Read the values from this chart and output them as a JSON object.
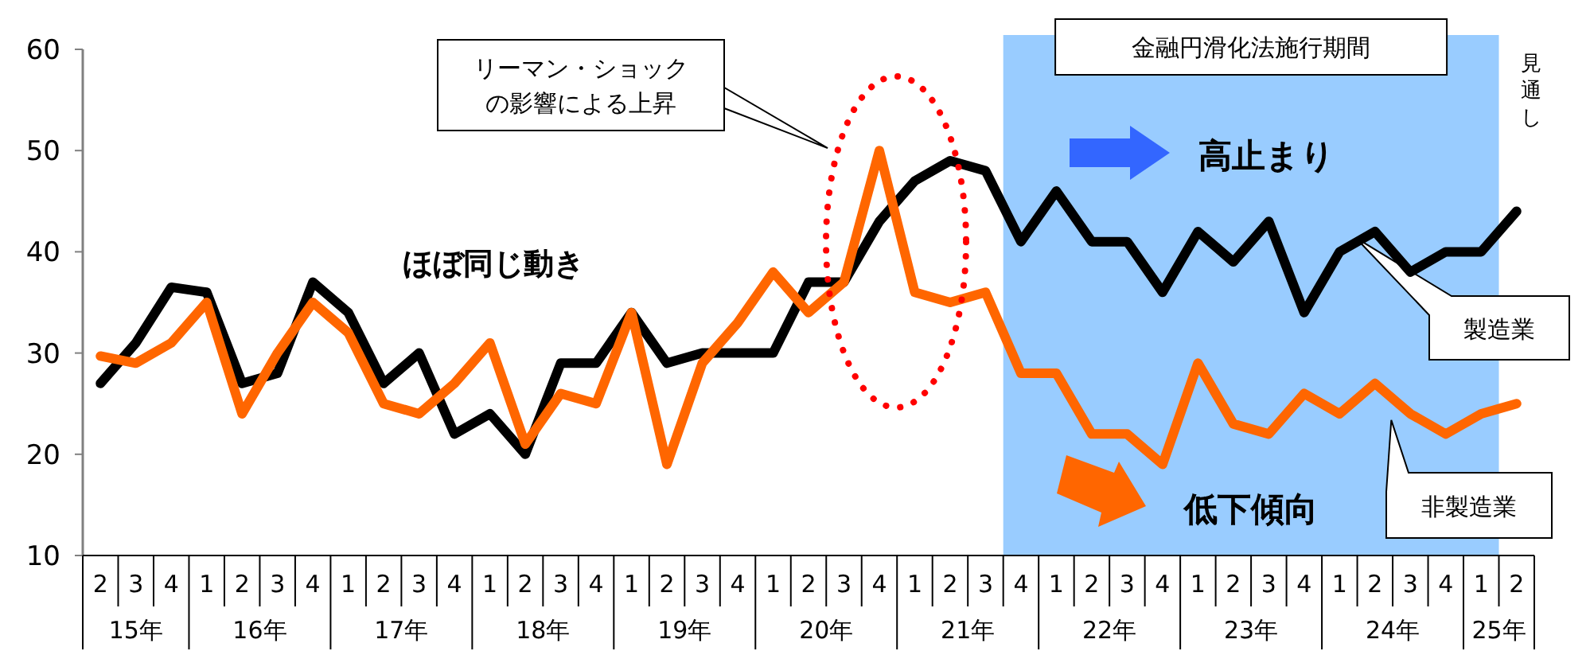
{
  "chart_data": {
    "type": "line",
    "categories": [
      "2",
      "3",
      "4",
      "1",
      "2",
      "3",
      "4",
      "1",
      "2",
      "3",
      "4",
      "1",
      "2",
      "3",
      "4",
      "1",
      "2",
      "3",
      "4",
      "1",
      "2",
      "3",
      "4",
      "1",
      "2",
      "3",
      "4",
      "1",
      "2",
      "3",
      "4",
      "1",
      "2",
      "3",
      "4",
      "1",
      "2",
      "3",
      "4",
      "1",
      "2"
    ],
    "series": [
      {
        "name": "製造業",
        "color": "#000000",
        "values": [
          27,
          31,
          36.5,
          36,
          27,
          28,
          37,
          34,
          27,
          30,
          22,
          24,
          20,
          29,
          29,
          34,
          29,
          30,
          30,
          30,
          37,
          37,
          43,
          47,
          49,
          48,
          41,
          46,
          41,
          41,
          36,
          42,
          39,
          43,
          34,
          40,
          42,
          38,
          40,
          40,
          44
        ]
      },
      {
        "name": "非製造業",
        "color": "#ff6600",
        "values": [
          29.7,
          29,
          31,
          35,
          24,
          30,
          35,
          32,
          25,
          24,
          27,
          31,
          21,
          26,
          25,
          34,
          19,
          29,
          33,
          38,
          34,
          37,
          50,
          36,
          35,
          36,
          28,
          28,
          22,
          22,
          19,
          29,
          23,
          22,
          26,
          24,
          27,
          24,
          22,
          24,
          25
        ]
      }
    ],
    "ylim": [
      10,
      60
    ],
    "yticks": [
      10,
      20,
      30,
      40,
      50,
      60
    ],
    "grid": false,
    "marker": "none",
    "line_style": "solid",
    "annotations": [
      "15年",
      "16年",
      "17年",
      "18年",
      "19年",
      "20年",
      "21年",
      "22年",
      "23年",
      "24年",
      "25年",
      "リーマン・ショック",
      "の影響による上昇",
      "ほぼ同じ動き",
      "高止まり",
      "低下傾向",
      "見通し",
      "金融円滑化法施行期間"
    ]
  }
}
